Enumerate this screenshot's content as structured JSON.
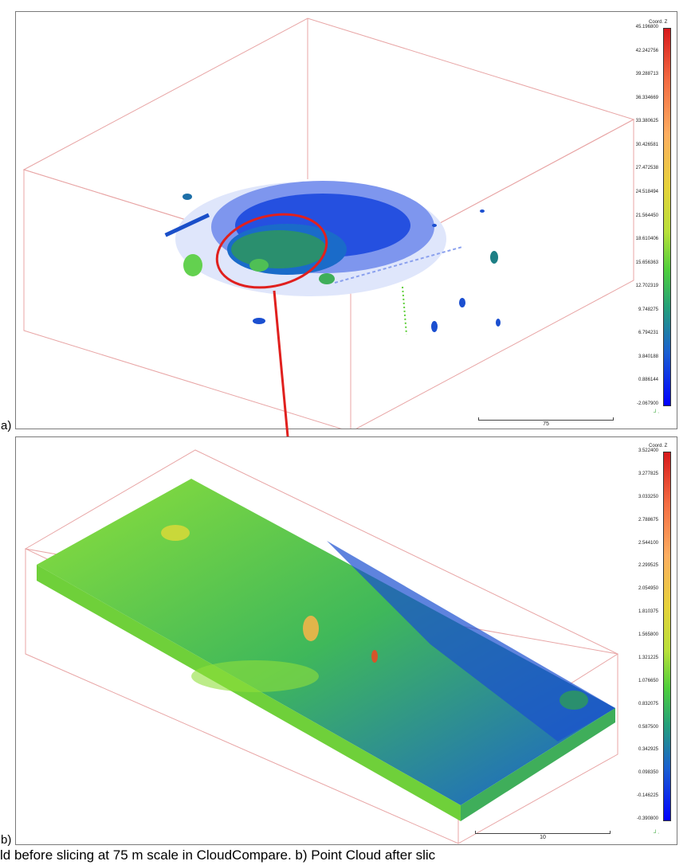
{
  "panel_a": {
    "label": "a)",
    "colorbar": {
      "title": "Coord. Z",
      "ticks": [
        "45.196800",
        "42.242756",
        "39.288713",
        "36.334669",
        "33.380625",
        "30.426581",
        "27.472538",
        "24.518494",
        "21.564450",
        "18.610406",
        "15.656363",
        "12.702319",
        "9.748275",
        "6.794231",
        "3.840188",
        "0.886144",
        "-2.067900"
      ]
    },
    "scale_bar": "75"
  },
  "panel_b": {
    "label": "b)",
    "colorbar": {
      "title": "Coord. Z",
      "ticks": [
        "3.522400",
        "3.277825",
        "3.033250",
        "2.788675",
        "2.544100",
        "2.299525",
        "2.054950",
        "1.810375",
        "1.565800",
        "1.321225",
        "1.076650",
        "0.832075",
        "0.587500",
        "0.342925",
        "0.098350",
        "-0.146225",
        "-0.390800"
      ]
    },
    "scale_bar": "10"
  },
  "caption": "ld before slicing at 75 m scale in CloudCompare. b) Point Cloud after slic",
  "colors": {
    "highlight": "#e0201e",
    "box_edges": "#e8a5a5",
    "ground_blue": "#1240d8",
    "vegetation_green": "#5fd03a"
  }
}
